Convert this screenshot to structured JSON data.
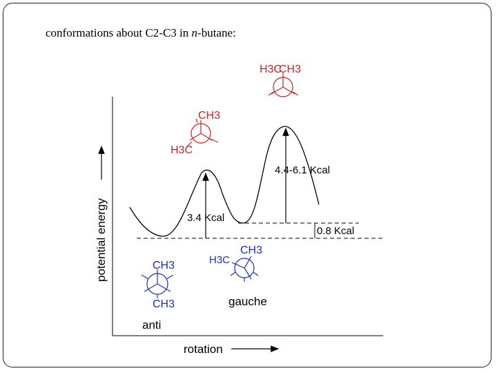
{
  "title": {
    "prefix": "conformations about C2-C3 in ",
    "italic": "n",
    "suffix": "-butane:"
  },
  "axes": {
    "y_label": "potential energy",
    "x_label": "rotation"
  },
  "annotations": {
    "barrier_1": "3.4 Kcal",
    "barrier_2": "4.4-6.1 Kcal",
    "gauche_gap": "0.8 Kcal"
  },
  "conformers": {
    "anti": {
      "name": "anti",
      "front_group": "CH3",
      "back_group": "CH3",
      "color": "#1a2fbf"
    },
    "gauche": {
      "name": "gauche",
      "group_left": "H3C",
      "group_right": "CH3",
      "color": "#1a2fbf"
    },
    "eclipsed_partial": {
      "group_top": "CH3",
      "group_left": "H3C",
      "color": "#cc2222"
    },
    "eclipsed_full": {
      "group_left": "H3C",
      "group_right": "CH3",
      "color": "#cc2222"
    }
  },
  "colors": {
    "curve": "#000000",
    "anti_gauche": "#1a2fbf",
    "eclipsed": "#cc2222"
  }
}
